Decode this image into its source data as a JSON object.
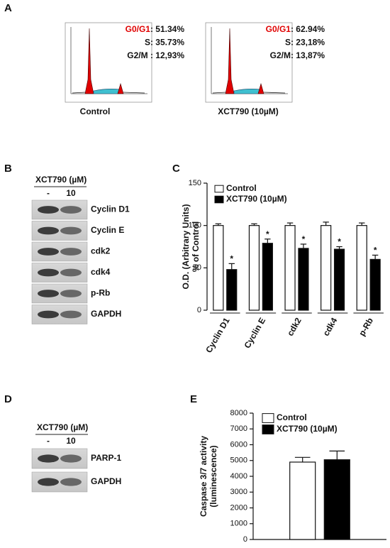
{
  "panel_labels": [
    "A",
    "B",
    "C",
    "D",
    "E"
  ],
  "flow": {
    "histograms": [
      {
        "caption": "Control",
        "stats": [
          {
            "phase": "G0/G1",
            "color": "#e00000",
            "text": ": 51.34%"
          },
          {
            "phase": "S",
            "color": "#111111",
            "text": ": 35.73%"
          },
          {
            "phase": "G2/M",
            "color": "#111111",
            "text": " : 12,93%"
          }
        ]
      },
      {
        "caption": "XCT790 (10µM)",
        "stats": [
          {
            "phase": "G0/G1",
            "color": "#e00000",
            "text": ": 62.94%"
          },
          {
            "phase": "S",
            "color": "#111111",
            "text": ": 23,18%"
          },
          {
            "phase": "G2/M",
            "color": "#111111",
            "text": ": 13,87%"
          }
        ]
      }
    ]
  },
  "blot_b": {
    "treatment": "XCT790 (µM)",
    "lanes": [
      "-",
      "10"
    ],
    "proteins": [
      "Cyclin D1",
      "Cyclin E",
      "cdk2",
      "cdk4",
      "p-Rb",
      "GAPDH"
    ]
  },
  "blot_d": {
    "treatment": "XCT790 (µM)",
    "lanes": [
      "-",
      "10"
    ],
    "proteins": [
      "PARP-1",
      "GAPDH"
    ]
  },
  "chart_data": [
    {
      "type": "bar",
      "y_label": [
        "O.D. (Arbitrary Units)",
        "% of Control"
      ],
      "categories": [
        "Cyclin D1",
        "Cyclin E",
        "cdk2",
        "cdk4",
        "p-Rb"
      ],
      "series": [
        {
          "name": "Control",
          "color": "#ffffff",
          "values": [
            100,
            100,
            100,
            100,
            100
          ],
          "errors": [
            2,
            2,
            3,
            4,
            3
          ]
        },
        {
          "name": "XCT790 (10µM)",
          "color": "#000000",
          "values": [
            48,
            79,
            73,
            72,
            60
          ],
          "errors": [
            7,
            5,
            5,
            3,
            5
          ],
          "annotations": [
            "*",
            "*",
            "*",
            "*",
            "*"
          ]
        }
      ],
      "ylim": [
        0,
        150
      ],
      "yticks": [
        0,
        50,
        100,
        150
      ],
      "legend": "upper left"
    },
    {
      "type": "bar",
      "y_label": [
        "Caspase 3/7 activity",
        "(luminescence)"
      ],
      "categories": [
        null
      ],
      "series": [
        {
          "name": "Control",
          "color": "#ffffff",
          "values": [
            4900
          ],
          "errors": [
            300
          ]
        },
        {
          "name": "XCT790 (10µM)",
          "color": "#000000",
          "values": [
            5050
          ],
          "errors": [
            550
          ]
        }
      ],
      "ylim": [
        0,
        8000
      ],
      "yticks": [
        0,
        1000,
        2000,
        3000,
        4000,
        5000,
        6000,
        7000,
        8000
      ],
      "legend": "upper left"
    }
  ]
}
